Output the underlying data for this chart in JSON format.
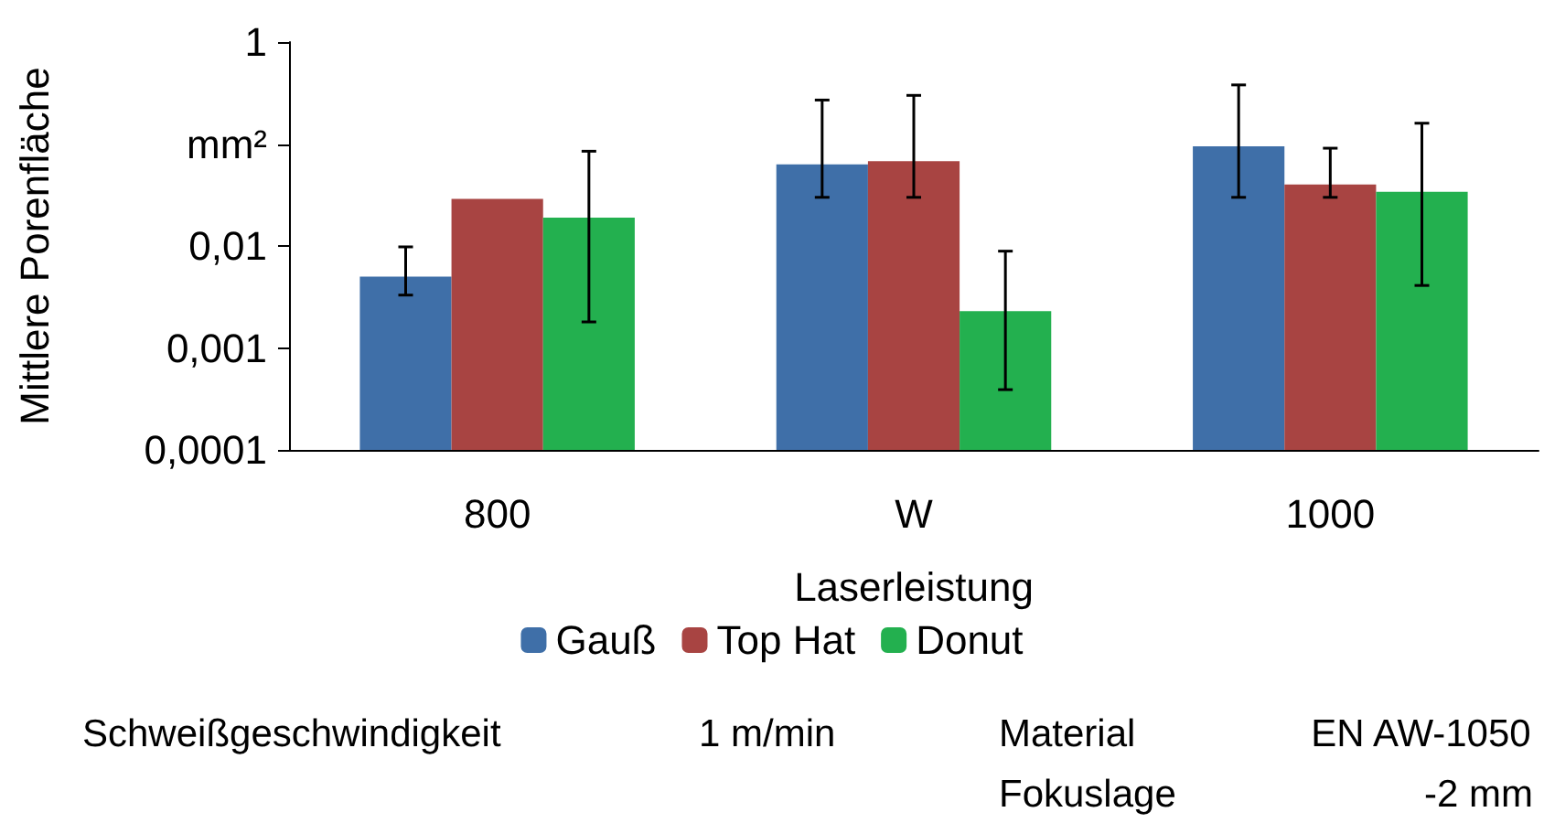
{
  "chart_data": {
    "type": "bar",
    "ylabel": "Mittlere Porenfläche",
    "xlabel": "Laserleistung",
    "categories": [
      "800",
      "W",
      "1000"
    ],
    "series": [
      {
        "name": "Gauß",
        "color": "#3f6fa8",
        "values": [
          0.005,
          0.063,
          0.095
        ],
        "errors": [
          [
            0.0033,
            0.0098
          ],
          [
            0.03,
            0.27
          ],
          [
            0.03,
            0.38
          ]
        ]
      },
      {
        "name": "Top Hat",
        "color": "#a84442",
        "values": [
          0.029,
          0.068,
          0.04
        ],
        "errors": [
          null,
          [
            0.03,
            0.3
          ],
          [
            0.03,
            0.091
          ]
        ]
      },
      {
        "name": "Donut",
        "color": "#23b04f",
        "values": [
          0.019,
          0.0023,
          0.034
        ],
        "errors": [
          [
            0.0018,
            0.085
          ],
          [
            0.00039,
            0.0089
          ],
          [
            0.0041,
            0.16
          ]
        ]
      }
    ],
    "log": "y",
    "ylim": [
      0.0001,
      1
    ],
    "yticks": [
      {
        "value": 0.0001,
        "label": "0,0001"
      },
      {
        "value": 0.001,
        "label": "0,001"
      },
      {
        "value": 0.01,
        "label": "0,01"
      },
      {
        "value": 0.1,
        "label": "mm²"
      },
      1
    ],
    "legend": "bottom",
    "grid": false,
    "annotations": [
      "Schweißgeschwindigkeit",
      "1 m/min",
      "Material",
      "EN AW-1050",
      "Fokuslage",
      "-2 mm"
    ]
  }
}
